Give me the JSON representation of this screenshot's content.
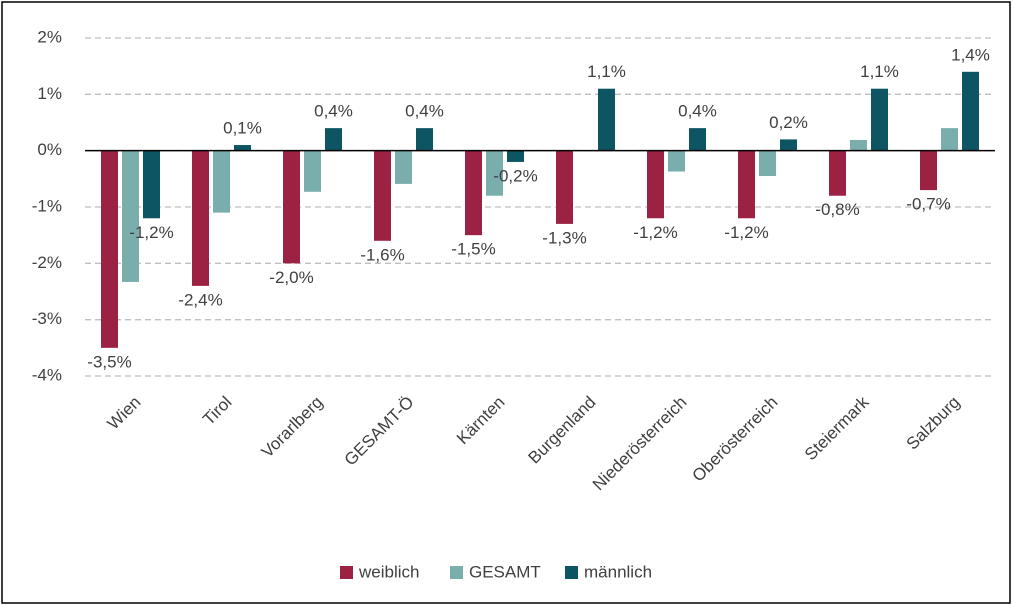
{
  "chart_data": {
    "type": "bar",
    "categories": [
      "Wien",
      "Tirol",
      "Vorarlberg",
      "GESAMT-Ö",
      "Kärnten",
      "Burgenland",
      "Niederösterreich",
      "Oberösterreich",
      "Steiermark",
      "Salzburg"
    ],
    "series": [
      {
        "name": "weiblich",
        "color": "#9b2242",
        "values": [
          -3.5,
          -2.4,
          -2.0,
          -1.6,
          -1.5,
          -1.3,
          -1.2,
          -1.2,
          -0.8,
          -0.7
        ],
        "value_labels": [
          "-3,5%",
          "-2,4%",
          "-2,0%",
          "-1,6%",
          "-1,5%",
          "-1,3%",
          "-1,2%",
          "-1,2%",
          "-0,8%",
          "-0,7%"
        ]
      },
      {
        "name": "GESAMT",
        "color": "#79aead",
        "values": [
          -2.33,
          -1.1,
          -0.73,
          -0.59,
          -0.8,
          0.01,
          -0.37,
          -0.45,
          0.19,
          0.4
        ]
      },
      {
        "name": "männlich",
        "color": "#0d5563",
        "values": [
          -1.2,
          0.1,
          0.4,
          0.4,
          -0.2,
          1.1,
          0.4,
          0.2,
          1.1,
          1.4
        ],
        "value_labels": [
          "-1,2%",
          "0,1%",
          "0,4%",
          "0,4%",
          "-0,2%",
          "1,1%",
          "0,4%",
          "0,2%",
          "1,1%",
          "1,4%"
        ]
      }
    ],
    "ylim": [
      -4,
      2
    ],
    "yticks": [
      {
        "value": -4,
        "label": "-4%"
      },
      {
        "value": -3,
        "label": "-3%"
      },
      {
        "value": -2,
        "label": "-2%"
      },
      {
        "value": -1,
        "label": "-1%"
      },
      {
        "value": 0,
        "label": "0%"
      },
      {
        "value": 1,
        "label": "1%"
      },
      {
        "value": 2,
        "label": "2%"
      }
    ],
    "grid": true,
    "legend": "bottom"
  }
}
